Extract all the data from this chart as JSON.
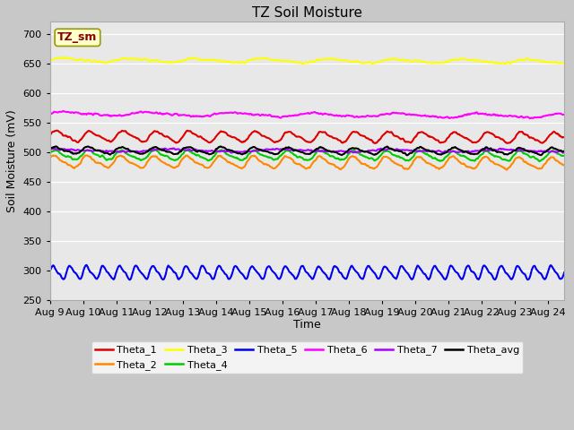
{
  "title": "TZ Soil Moisture",
  "ylabel": "Soil Moisture (mV)",
  "xlabel": "Time",
  "annotation": "TZ_sm",
  "ylim": [
    250,
    720
  ],
  "yticks": [
    250,
    300,
    350,
    400,
    450,
    500,
    550,
    600,
    650,
    700
  ],
  "xlim_days": 15.5,
  "num_points": 744,
  "series_order": [
    "Theta_1",
    "Theta_2",
    "Theta_3",
    "Theta_4",
    "Theta_5",
    "Theta_6",
    "Theta_7",
    "Theta_avg"
  ],
  "series": {
    "Theta_1": {
      "color": "#dd0000",
      "base": 527,
      "amp": 8,
      "freq": 1.0,
      "phase": 0.0,
      "trend": -0.003
    },
    "Theta_2": {
      "color": "#ff8800",
      "base": 484,
      "amp": 9,
      "freq": 1.0,
      "phase": 0.5,
      "trend": -0.004
    },
    "Theta_3": {
      "color": "#ffff00",
      "base": 656,
      "amp": 3,
      "freq": 0.5,
      "phase": 0.0,
      "trend": -0.004
    },
    "Theta_4": {
      "color": "#00cc00",
      "base": 495,
      "amp": 7,
      "freq": 1.0,
      "phase": 0.3,
      "trend": -0.002
    },
    "Theta_5": {
      "color": "#0000ee",
      "base": 297,
      "amp": 10,
      "freq": 2.0,
      "phase": 0.0,
      "trend": 0.0
    },
    "Theta_6": {
      "color": "#ff00ff",
      "base": 565,
      "amp": 3,
      "freq": 0.4,
      "phase": 0.2,
      "trend": -0.005
    },
    "Theta_7": {
      "color": "#aa00ff",
      "base": 503,
      "amp": 2,
      "freq": 0.3,
      "phase": 0.8,
      "trend": -0.001
    },
    "Theta_avg": {
      "color": "#000000",
      "base": 503,
      "amp": 5,
      "freq": 1.0,
      "phase": 0.25,
      "trend": -0.002
    }
  },
  "fig_facecolor": "#c8c8c8",
  "ax_facecolor": "#e8e8e8",
  "grid_color": "#ffffff",
  "annot_facecolor": "#ffffcc",
  "annot_edgecolor": "#999900",
  "annot_textcolor": "#880000",
  "title_fontsize": 11,
  "axis_label_fontsize": 9,
  "tick_fontsize": 8,
  "legend_fontsize": 8,
  "linewidth": 1.5
}
